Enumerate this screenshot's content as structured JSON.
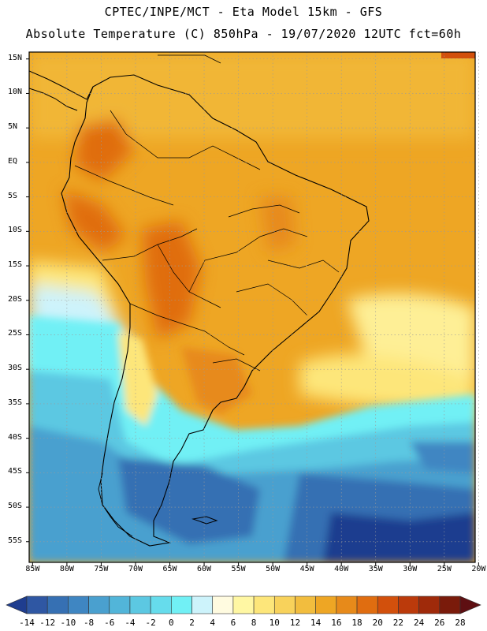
{
  "header": {
    "title_line1": "CPTEC/INPE/MCT -  Eta Model 15km - GFS",
    "title_line2": "Absolute Temperature (C) 850hPa - 19/07/2020 12UTC fct=60h"
  },
  "map": {
    "lat_labels": [
      "15N",
      "10N",
      "5N",
      "EQ",
      "5S",
      "10S",
      "15S",
      "20S",
      "25S",
      "30S",
      "35S",
      "40S",
      "45S",
      "50S",
      "55S"
    ],
    "lat_values": [
      15,
      10,
      5,
      0,
      -5,
      -10,
      -15,
      -20,
      -25,
      -30,
      -35,
      -40,
      -45,
      -50,
      -55
    ],
    "lon_labels": [
      "85W",
      "80W",
      "75W",
      "70W",
      "65W",
      "60W",
      "55W",
      "50W",
      "45W",
      "40W",
      "35W",
      "30W",
      "25W",
      "20W"
    ],
    "lon_values": [
      -85,
      -80,
      -75,
      -70,
      -65,
      -60,
      -55,
      -50,
      -45,
      -40,
      -35,
      -30,
      -25,
      -20
    ],
    "extent": {
      "lon_min": -85.5,
      "lon_max": -20.5,
      "lat_min": -58,
      "lat_max": 16
    },
    "grid": "dotted"
  },
  "legend": {
    "labels": [
      "-14",
      "-12",
      "-10",
      "-8",
      "-6",
      "-4",
      "-2",
      "0",
      "2",
      "4",
      "6",
      "8",
      "10",
      "12",
      "14",
      "16",
      "18",
      "20",
      "22",
      "24",
      "26",
      "28"
    ],
    "colors": [
      "#1f3d8f",
      "#2f57a3",
      "#3670b3",
      "#3f86c2",
      "#4aa0cf",
      "#52b5d9",
      "#5cc8e2",
      "#66dcec",
      "#71f0f5",
      "#cdf3fb",
      "#fffbe0",
      "#fff7a3",
      "#fde67a",
      "#f8d25b",
      "#f2bd3e",
      "#eea624",
      "#e78a1a",
      "#e06d10",
      "#d2500c",
      "#bb3a0b",
      "#9f2a0a",
      "#7a1b0b",
      "#5e0f12"
    ]
  }
}
